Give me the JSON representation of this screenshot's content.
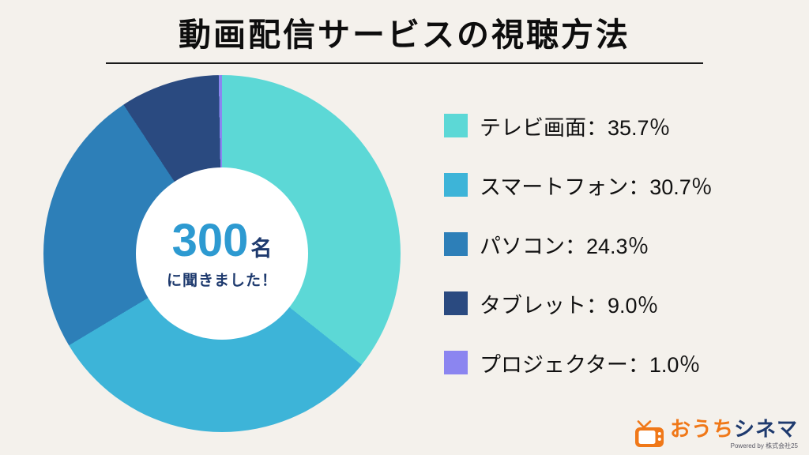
{
  "page": {
    "background": "#f4f1ec",
    "title": "動画配信サービスの視聴方法"
  },
  "chart_data": {
    "type": "pie",
    "subtype": "donut",
    "title": "動画配信サービスの視聴方法",
    "categories": [
      "テレビ画面",
      "スマートフォン",
      "パソコン",
      "タブレット",
      "プロジェクター"
    ],
    "values": [
      35.7,
      30.7,
      24.3,
      9.0,
      1.0
    ],
    "unit": "％",
    "legend_separator": "：",
    "colors": [
      "#5cd8d6",
      "#3db4d8",
      "#2d7fb8",
      "#2a4a80",
      "#8b85f0"
    ],
    "start_angle_deg": 0,
    "direction": "clockwise",
    "legend_position": "right",
    "center_label": {
      "number": "300",
      "unit": "名",
      "caption": "に聞きました！",
      "number_color": "#2d9ad1",
      "text_color": "#1e3a6e"
    }
  },
  "footer_logo": {
    "brand_part1": "おうち",
    "brand_part2": "シネマ",
    "brand_color1": "#f07818",
    "brand_color2": "#1e3a6e",
    "powered_by": "Powered by 株式会社25"
  }
}
